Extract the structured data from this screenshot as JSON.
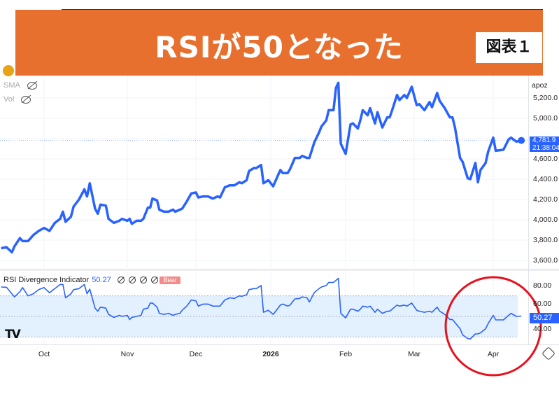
{
  "banner": {
    "title": "RSIが50となった",
    "figure_label": "図表１",
    "color": "#E8702F"
  },
  "legend": {
    "sma": "SMA",
    "vol": "Vol"
  },
  "price_axis": {
    "header": "apoz",
    "ticks": [
      "5,200.0",
      "5,000.0",
      "4,600.0",
      "4,400.0",
      "4,200.0",
      "4,000.0",
      "3,800.0",
      "3,600.0"
    ],
    "last_price": "4,781.9",
    "countdown": "21:38:04"
  },
  "rsi_panel": {
    "name": "RSI Divergence Indicator",
    "value": "50.27",
    "signal_label": "Bear",
    "ticks": [
      "80.00",
      "60.00",
      "40.00"
    ],
    "band": [
      30,
      70
    ],
    "midline": 50
  },
  "time_axis": {
    "labels": [
      "Oct",
      "Nov",
      "Dec",
      "2026",
      "Feb",
      "Mar",
      "Apr"
    ]
  },
  "colors": {
    "line": "#2962FF",
    "band": "#E3F0FD",
    "highlight_circle": "#E8101C"
  },
  "chart_data": [
    {
      "type": "line",
      "series": [
        {
          "name": "price"
        }
      ],
      "ylim": [
        3550,
        5400
      ],
      "y_ticks": [
        3600,
        3800,
        4000,
        4200,
        4400,
        4600,
        5000,
        5200
      ],
      "grid": true,
      "x": [
        "2025-09-15",
        "2025-09-17",
        "2025-09-19",
        "2025-09-20",
        "2025-09-22",
        "2025-09-23",
        "2025-09-25",
        "2025-09-27",
        "2025-09-29",
        "2025-10-01",
        "2025-10-03",
        "2025-10-05",
        "2025-10-07",
        "2025-10-08",
        "2025-10-09",
        "2025-10-11",
        "2025-10-12",
        "2025-10-14",
        "2025-10-16",
        "2025-10-17",
        "2025-10-18",
        "2025-10-20",
        "2025-10-21",
        "2025-10-22",
        "2025-10-24",
        "2025-10-25",
        "2025-10-27",
        "2025-10-29",
        "2025-10-30",
        "2025-11-01",
        "2025-11-02",
        "2025-11-03",
        "2025-11-05",
        "2025-11-07",
        "2025-11-08",
        "2025-11-10",
        "2025-11-11",
        "2025-11-12",
        "2025-11-14",
        "2025-11-15",
        "2025-11-17",
        "2025-11-19",
        "2025-11-21",
        "2025-11-22",
        "2025-11-24",
        "2025-11-25",
        "2025-11-27",
        "2025-11-29",
        "2025-12-01",
        "2025-12-02",
        "2025-12-04",
        "2025-12-06",
        "2025-12-08",
        "2025-12-10",
        "2025-12-11",
        "2025-12-13",
        "2025-12-15",
        "2025-12-17",
        "2025-12-19",
        "2025-12-20",
        "2025-12-22",
        "2025-12-23",
        "2025-12-25",
        "2025-12-26",
        "2025-12-28",
        "2025-12-29",
        "2025-12-31",
        "2026-01-02",
        "2026-01-04",
        "2026-01-05",
        "2026-01-06",
        "2026-01-08",
        "2026-01-09",
        "2026-01-11",
        "2026-01-13",
        "2026-01-14",
        "2026-01-16",
        "2026-01-17",
        "2026-01-19",
        "2026-01-21",
        "2026-01-22",
        "2026-01-24",
        "2026-01-25",
        "2026-01-27",
        "2026-01-28",
        "2026-01-29",
        "2026-01-30",
        "2026-02-01",
        "2026-02-03",
        "2026-02-04",
        "2026-02-06",
        "2026-02-07",
        "2026-02-08",
        "2026-02-10",
        "2026-02-11",
        "2026-02-13",
        "2026-02-14",
        "2026-02-16",
        "2026-02-18",
        "2026-02-19",
        "2026-02-20",
        "2026-02-22",
        "2026-02-23",
        "2026-02-25",
        "2026-02-26",
        "2026-02-28",
        "2026-03-02",
        "2026-03-03",
        "2026-03-05",
        "2026-03-07",
        "2026-03-08",
        "2026-03-10",
        "2026-03-11",
        "2026-03-13",
        "2026-03-15",
        "2026-03-16",
        "2026-03-17",
        "2026-03-19",
        "2026-03-20",
        "2026-03-22",
        "2026-03-23",
        "2026-03-25",
        "2026-03-26",
        "2026-03-27",
        "2026-03-29",
        "2026-03-30",
        "2026-04-01",
        "2026-04-02",
        "2026-04-05",
        "2026-04-07",
        "2026-04-08",
        "2026-04-10",
        "2026-04-12"
      ],
      "price": [
        3720,
        3730,
        3680,
        3740,
        3820,
        3790,
        3790,
        3850,
        3890,
        3920,
        3890,
        3970,
        4010,
        4080,
        3980,
        4030,
        4130,
        4200,
        4300,
        4230,
        4360,
        4110,
        4060,
        4150,
        4140,
        4010,
        3970,
        3990,
        4010,
        3990,
        4010,
        3960,
        3990,
        3990,
        4010,
        4120,
        4120,
        4210,
        4190,
        4100,
        4080,
        4080,
        4100,
        4080,
        4100,
        4110,
        4180,
        4260,
        4270,
        4220,
        4230,
        4230,
        4210,
        4230,
        4220,
        4320,
        4340,
        4340,
        4370,
        4360,
        4390,
        4480,
        4510,
        4510,
        4540,
        4360,
        4390,
        4330,
        4440,
        4490,
        4460,
        4460,
        4500,
        4610,
        4610,
        4630,
        4610,
        4610,
        4760,
        4860,
        4920,
        4980,
        5080,
        5080,
        5300,
        5350,
        4750,
        4650,
        4940,
        4950,
        4900,
        4980,
        5080,
        5030,
        5100,
        4950,
        5060,
        4910,
        5010,
        5010,
        5080,
        5230,
        5180,
        5230,
        5200,
        5310,
        5130,
        5140,
        5080,
        5160,
        5110,
        5250,
        5170,
        5100,
        5010,
        5010,
        4910,
        4610,
        4570,
        4410,
        4400,
        4560,
        4370,
        4490,
        4560,
        4670,
        4810,
        4680,
        4690,
        4790,
        4810,
        4770,
        4781.9
      ],
      "rsi": [
        78.6,
        78.3,
        72,
        69,
        74,
        78,
        70,
        72,
        76,
        78,
        73,
        77,
        81,
        81,
        68,
        72,
        76,
        77,
        81,
        72,
        76.5,
        58,
        55,
        59,
        58,
        52,
        49,
        51,
        50,
        51,
        47,
        49,
        50,
        51,
        57,
        58,
        63,
        63,
        59,
        53,
        52,
        53,
        51,
        52,
        53,
        56,
        60,
        66,
        65,
        60,
        62,
        62,
        60,
        60,
        60,
        66,
        68,
        67.5,
        70,
        69.5,
        71,
        76,
        77,
        77,
        80,
        54,
        56,
        52,
        58,
        61,
        62,
        60,
        61,
        67,
        67.5,
        69,
        68,
        64,
        73,
        77,
        78.6,
        80,
        83,
        83,
        85,
        87,
        53,
        48.5,
        57,
        57,
        55,
        57,
        60,
        59,
        60,
        54,
        57,
        53,
        55,
        55,
        57,
        61,
        60,
        61,
        60,
        63,
        56,
        55,
        54,
        55,
        54,
        59,
        55,
        52,
        47,
        47,
        44,
        38,
        32,
        28.5,
        28,
        33,
        33,
        34,
        38,
        43,
        51,
        46.6,
        46.6,
        51,
        53,
        50,
        50.27
      ],
      "rsi_ylim": [
        25,
        90
      ],
      "rsi_ticks": [
        40,
        60,
        80
      ]
    }
  ]
}
